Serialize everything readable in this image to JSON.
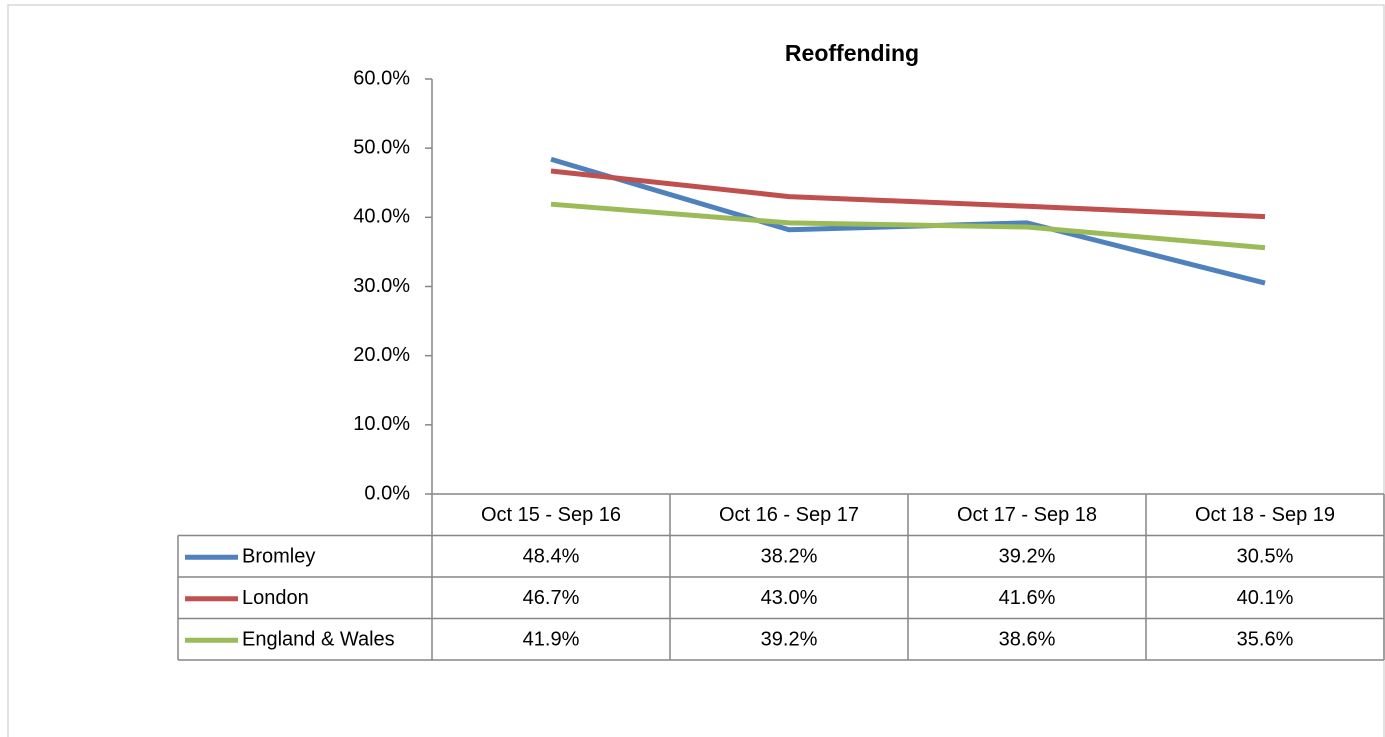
{
  "chart_data": {
    "type": "line",
    "title": "Reoffending",
    "categories": [
      "Oct 15 - Sep 16",
      "Oct 16 - Sep 17",
      "Oct 17 - Sep 18",
      "Oct 18 - Sep 19"
    ],
    "series": [
      {
        "name": "Bromley",
        "color": "#4f81bd",
        "values": [
          48.4,
          38.2,
          39.2,
          30.5
        ],
        "value_labels": [
          "48.4%",
          "38.2%",
          "39.2%",
          "30.5%"
        ]
      },
      {
        "name": "London",
        "color": "#c0504d",
        "values": [
          46.7,
          43.0,
          41.6,
          40.1
        ],
        "value_labels": [
          "46.7%",
          "43.0%",
          "41.6%",
          "40.1%"
        ]
      },
      {
        "name": "England & Wales",
        "color": "#9bbb59",
        "values": [
          41.9,
          39.2,
          38.6,
          35.6
        ],
        "value_labels": [
          "41.9%",
          "39.2%",
          "38.6%",
          "35.6%"
        ]
      }
    ],
    "ylim": [
      0,
      60
    ],
    "yticks": [
      {
        "value": 0,
        "label": "0.0%"
      },
      {
        "value": 10,
        "label": "10.0%"
      },
      {
        "value": 20,
        "label": "20.0%"
      },
      {
        "value": 30,
        "label": "30.0%"
      },
      {
        "value": 40,
        "label": "40.0%"
      },
      {
        "value": 50,
        "label": "50.0%"
      },
      {
        "value": 60,
        "label": "60.0%"
      }
    ],
    "grid": false
  }
}
